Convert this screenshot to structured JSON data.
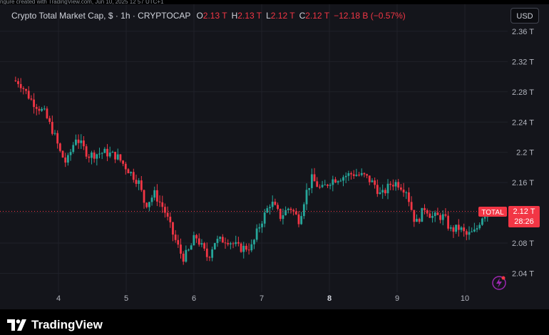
{
  "top_caption": "ngure created with TradingView.com, Jun 10, 2025 12 57 UTC+1",
  "header": {
    "title": "Crypto Total Market Cap, $ · 1h · CRYPTOCAP",
    "open_label": "O",
    "open_value": "2.13 T",
    "high_label": "H",
    "high_value": "2.13 T",
    "low_label": "L",
    "low_value": "2.12 T",
    "close_label": "C",
    "close_value": "2.12 T",
    "change": "−12.18 B (−0.57%)"
  },
  "currency_button": "USD",
  "price_tag": {
    "symbol": "TOTAL",
    "price": "2.12 T",
    "countdown": "28:26"
  },
  "brand": "TradingView",
  "colors": {
    "up": "#26a69a",
    "down": "#f23645",
    "accent": "#9c27b0"
  },
  "chart_data": {
    "type": "candlestick",
    "x_ticks": [
      "4",
      "5",
      "6",
      "7",
      "8",
      "9",
      "10"
    ],
    "bold_tick": "8",
    "y_ticks": [
      "2.04 T",
      "2.08 T",
      "2.12 T",
      "2.16 T",
      "2.2 T",
      "2.24 T",
      "2.28 T",
      "2.32 T",
      "2.36 T"
    ],
    "y_tick_values": [
      2.04,
      2.08,
      2.12,
      2.16,
      2.2,
      2.24,
      2.28,
      2.32,
      2.36
    ],
    "ylim": [
      2.015,
      2.375
    ],
    "xlim": [
      2.9,
      10.65
    ],
    "last_price": 2.122,
    "grid": true,
    "anchors": [
      [
        3.0,
        2.295
      ],
      [
        3.1,
        2.293
      ],
      [
        3.3,
        2.268
      ],
      [
        3.5,
        2.252
      ],
      [
        3.65,
        2.225
      ],
      [
        3.75,
        2.2
      ],
      [
        3.85,
        2.185
      ],
      [
        4.0,
        2.22
      ],
      [
        4.2,
        2.196
      ],
      [
        4.45,
        2.2
      ],
      [
        4.65,
        2.195
      ],
      [
        4.85,
        2.175
      ],
      [
        5.0,
        2.16
      ],
      [
        5.1,
        2.13
      ],
      [
        5.25,
        2.145
      ],
      [
        5.4,
        2.125
      ],
      [
        5.55,
        2.09
      ],
      [
        5.7,
        2.06
      ],
      [
        5.8,
        2.07
      ],
      [
        5.9,
        2.09
      ],
      [
        6.0,
        2.075
      ],
      [
        6.1,
        2.06
      ],
      [
        6.2,
        2.082
      ],
      [
        6.4,
        2.085
      ],
      [
        6.6,
        2.073
      ],
      [
        6.8,
        2.075
      ],
      [
        6.9,
        2.1
      ],
      [
        7.1,
        2.135
      ],
      [
        7.25,
        2.115
      ],
      [
        7.4,
        2.128
      ],
      [
        7.55,
        2.11
      ],
      [
        7.65,
        2.145
      ],
      [
        7.75,
        2.165
      ],
      [
        7.9,
        2.15
      ],
      [
        8.05,
        2.163
      ],
      [
        8.2,
        2.167
      ],
      [
        8.4,
        2.172
      ],
      [
        8.6,
        2.168
      ],
      [
        8.75,
        2.157
      ],
      [
        8.85,
        2.142
      ],
      [
        9.0,
        2.158
      ],
      [
        9.1,
        2.16
      ],
      [
        9.25,
        2.15
      ],
      [
        9.4,
        2.105
      ],
      [
        9.55,
        2.128
      ],
      [
        9.65,
        2.115
      ],
      [
        9.85,
        2.115
      ],
      [
        9.95,
        2.097
      ],
      [
        10.1,
        2.1
      ],
      [
        10.2,
        2.09
      ],
      [
        10.35,
        2.095
      ],
      [
        10.45,
        2.115
      ],
      [
        10.55,
        2.122
      ]
    ]
  }
}
